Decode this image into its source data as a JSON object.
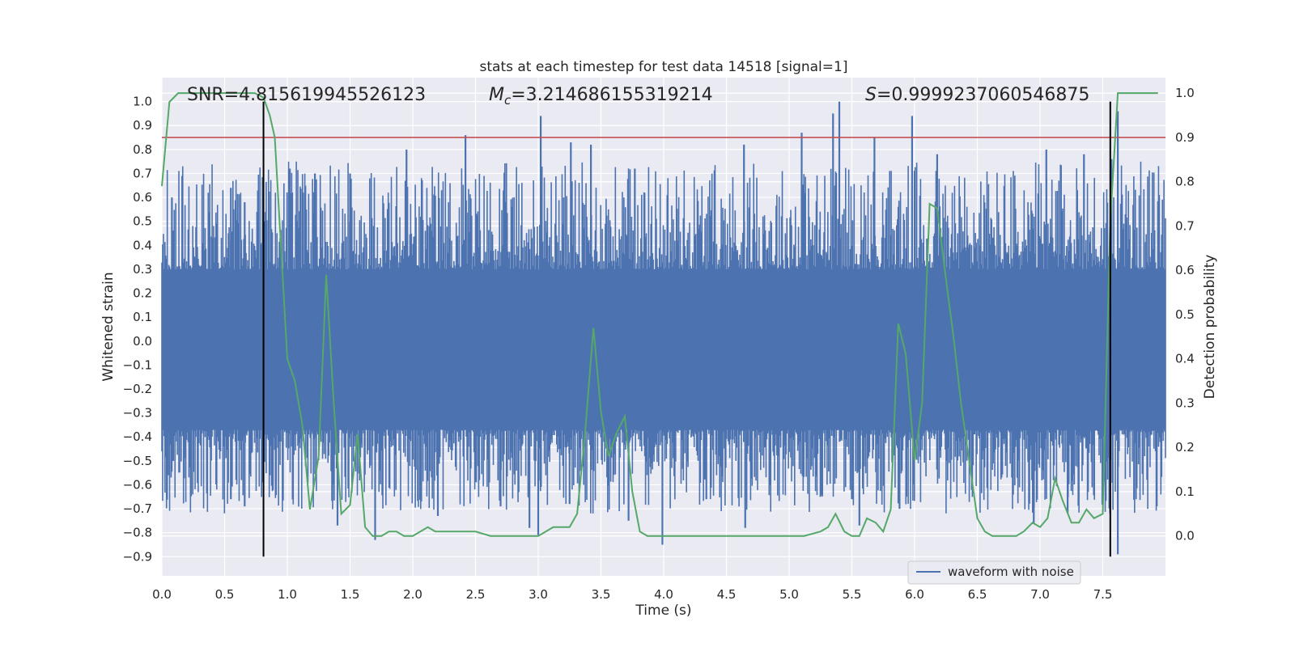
{
  "chart_data": {
    "type": "line",
    "title": "stats at each timestep for test data 14518 [signal=1]",
    "xlabel": "Time (s)",
    "ylabel": "Whitened strain",
    "y2label": "Detection probability",
    "xlim": [
      0.0,
      8.0
    ],
    "ylim": [
      -0.98,
      1.1
    ],
    "y2lim": [
      -0.09,
      1.035
    ],
    "xticks": [
      "0.0",
      "0.5",
      "1.0",
      "1.5",
      "2.0",
      "2.5",
      "3.0",
      "3.5",
      "4.0",
      "4.5",
      "5.0",
      "5.5",
      "6.0",
      "6.5",
      "7.0",
      "7.5"
    ],
    "yticks": [
      "1.0",
      "0.9",
      "0.8",
      "0.7",
      "0.6",
      "0.5",
      "0.4",
      "0.3",
      "0.2",
      "0.1",
      "0.0",
      "−0.1",
      "−0.2",
      "−0.3",
      "−0.4",
      "−0.5",
      "−0.6",
      "−0.7",
      "−0.8",
      "−0.9"
    ],
    "y2ticks": [
      "1.0",
      "0.9",
      "0.8",
      "0.7",
      "0.6",
      "0.5",
      "0.4",
      "0.3",
      "0.2",
      "0.1",
      "0.0"
    ],
    "annotations": {
      "snr": "SNR=4.815619945526123",
      "mc_symbol": "M",
      "mc_sub": "c",
      "mc_value": "=3.214686155319214",
      "s_symbol": "S",
      "s_value": "=0.9999237060546875"
    },
    "legend": {
      "location": "lower-right",
      "label": "waveform with noise"
    },
    "threshold_y2": 0.9,
    "vertical_lines_x": [
      0.81,
      7.56
    ],
    "vertical_line_range": [
      -0.9,
      1.0
    ],
    "waveform": {
      "name": "waveform with noise",
      "x_range": [
        0.0,
        8.0
      ],
      "envelope_top": 0.3,
      "envelope_bottom": -0.37,
      "peaks": [
        {
          "x": 0.08,
          "y": 0.6
        },
        {
          "x": 0.55,
          "y": 0.64
        },
        {
          "x": 0.66,
          "y": 0.58
        },
        {
          "x": 1.02,
          "y": 0.72
        },
        {
          "x": 1.22,
          "y": 0.7
        },
        {
          "x": 1.5,
          "y": 0.7
        },
        {
          "x": 1.95,
          "y": 0.8
        },
        {
          "x": 2.42,
          "y": 0.86
        },
        {
          "x": 3.02,
          "y": 0.94
        },
        {
          "x": 3.26,
          "y": 0.83
        },
        {
          "x": 3.42,
          "y": 0.82
        },
        {
          "x": 3.77,
          "y": 0.72
        },
        {
          "x": 4.64,
          "y": 0.82
        },
        {
          "x": 5.1,
          "y": 0.87
        },
        {
          "x": 5.35,
          "y": 0.95
        },
        {
          "x": 5.4,
          "y": 1.0
        },
        {
          "x": 5.68,
          "y": 0.85
        },
        {
          "x": 5.98,
          "y": 0.94
        },
        {
          "x": 6.18,
          "y": 0.78
        },
        {
          "x": 7.05,
          "y": 0.8
        },
        {
          "x": 7.35,
          "y": 0.78
        },
        {
          "x": 7.62,
          "y": 0.96
        },
        {
          "x": 7.57,
          "y": 0.76
        }
      ],
      "troughs": [
        {
          "x": 0.05,
          "y": -0.56
        },
        {
          "x": 0.55,
          "y": -0.66
        },
        {
          "x": 0.66,
          "y": -0.69
        },
        {
          "x": 0.8,
          "y": -0.59
        },
        {
          "x": 1.4,
          "y": -0.77
        },
        {
          "x": 1.7,
          "y": -0.83
        },
        {
          "x": 2.2,
          "y": -0.73
        },
        {
          "x": 2.7,
          "y": -0.69
        },
        {
          "x": 2.93,
          "y": -0.78
        },
        {
          "x": 3.0,
          "y": -0.81
        },
        {
          "x": 3.25,
          "y": -0.68
        },
        {
          "x": 3.72,
          "y": -0.75
        },
        {
          "x": 3.99,
          "y": -0.85
        },
        {
          "x": 4.34,
          "y": -0.66
        },
        {
          "x": 4.65,
          "y": -0.78
        },
        {
          "x": 5.25,
          "y": -0.65
        },
        {
          "x": 5.5,
          "y": -0.66
        },
        {
          "x": 5.56,
          "y": -0.77
        },
        {
          "x": 5.88,
          "y": -0.7
        },
        {
          "x": 6.95,
          "y": -0.76
        },
        {
          "x": 7.22,
          "y": -0.72
        },
        {
          "x": 7.5,
          "y": -0.55
        },
        {
          "x": 7.62,
          "y": -0.89
        }
      ]
    },
    "detection_probability": {
      "name": "Detection probability",
      "x": [
        0.0,
        0.06,
        0.13,
        0.2,
        0.4,
        0.6,
        0.74,
        0.81,
        0.86,
        0.9,
        0.96,
        1.0,
        1.06,
        1.12,
        1.18,
        1.25,
        1.31,
        1.37,
        1.43,
        1.5,
        1.56,
        1.62,
        1.68,
        1.75,
        1.81,
        1.87,
        1.93,
        2.0,
        2.06,
        2.12,
        2.18,
        2.25,
        2.37,
        2.5,
        2.62,
        2.75,
        2.87,
        3.0,
        3.06,
        3.12,
        3.19,
        3.25,
        3.31,
        3.37,
        3.44,
        3.5,
        3.56,
        3.62,
        3.69,
        3.75,
        3.81,
        3.87,
        3.94,
        4.0,
        4.12,
        4.25,
        4.37,
        4.5,
        4.62,
        4.75,
        4.87,
        5.0,
        5.12,
        5.25,
        5.31,
        5.37,
        5.44,
        5.5,
        5.56,
        5.62,
        5.69,
        5.75,
        5.81,
        5.87,
        5.93,
        6.0,
        6.06,
        6.12,
        6.18,
        6.25,
        6.31,
        6.37,
        6.44,
        6.5,
        6.56,
        6.62,
        6.69,
        6.75,
        6.81,
        6.87,
        6.94,
        7.0,
        7.06,
        7.12,
        7.18,
        7.25,
        7.31,
        7.37,
        7.43,
        7.5,
        7.56,
        7.62,
        7.68,
        7.75,
        7.81,
        7.87,
        7.94
      ],
      "y": [
        0.79,
        0.98,
        1.0,
        1.0,
        1.0,
        1.0,
        1.0,
        0.99,
        0.95,
        0.9,
        0.6,
        0.4,
        0.35,
        0.25,
        0.06,
        0.18,
        0.59,
        0.3,
        0.05,
        0.07,
        0.23,
        0.02,
        0.0,
        0.0,
        0.01,
        0.01,
        0.0,
        0.0,
        0.01,
        0.02,
        0.01,
        0.01,
        0.01,
        0.01,
        0.0,
        0.0,
        0.0,
        0.0,
        0.01,
        0.02,
        0.02,
        0.02,
        0.05,
        0.22,
        0.47,
        0.28,
        0.18,
        0.23,
        0.27,
        0.1,
        0.01,
        0.0,
        0.0,
        0.0,
        0.0,
        0.0,
        0.0,
        0.0,
        0.0,
        0.0,
        0.0,
        0.0,
        0.0,
        0.01,
        0.02,
        0.05,
        0.01,
        0.0,
        0.0,
        0.04,
        0.03,
        0.01,
        0.06,
        0.48,
        0.41,
        0.17,
        0.3,
        0.75,
        0.74,
        0.58,
        0.45,
        0.3,
        0.16,
        0.04,
        0.01,
        0.0,
        0.0,
        0.0,
        0.0,
        0.01,
        0.03,
        0.02,
        0.04,
        0.13,
        0.08,
        0.03,
        0.03,
        0.06,
        0.04,
        0.05,
        0.71,
        1.0,
        1.0,
        1.0,
        1.0,
        1.0,
        1.0
      ]
    }
  },
  "colors": {
    "page_bg": "#ffffff",
    "axes_bg": "#eaeaf2",
    "grid": "#ffffff",
    "waveform": "#4c72b0",
    "probability": "#55a868",
    "threshold": "#c44e52",
    "vline": "#000000",
    "text": "#262626"
  }
}
